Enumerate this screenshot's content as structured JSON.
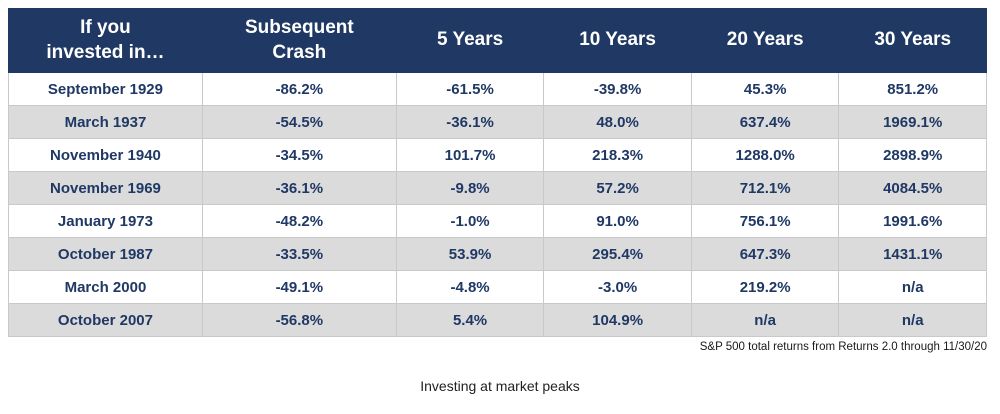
{
  "table": {
    "headers": [
      "If you\ninvested in…",
      "Subsequent\nCrash",
      "5 Years",
      "10 Years",
      "20 Years",
      "30 Years"
    ],
    "rows": [
      [
        "September 1929",
        "-86.2%",
        "-61.5%",
        "-39.8%",
        "45.3%",
        "851.2%"
      ],
      [
        "March 1937",
        "-54.5%",
        "-36.1%",
        "48.0%",
        "637.4%",
        "1969.1%"
      ],
      [
        "November 1940",
        "-34.5%",
        "101.7%",
        "218.3%",
        "1288.0%",
        "2898.9%"
      ],
      [
        "November 1969",
        "-36.1%",
        "-9.8%",
        "57.2%",
        "712.1%",
        "4084.5%"
      ],
      [
        "January 1973",
        "-48.2%",
        "-1.0%",
        "91.0%",
        "756.1%",
        "1991.6%"
      ],
      [
        "October 1987",
        "-33.5%",
        "53.9%",
        "295.4%",
        "647.3%",
        "1431.1%"
      ],
      [
        "March 2000",
        "-49.1%",
        "-4.8%",
        "-3.0%",
        "219.2%",
        "n/a"
      ],
      [
        "October 2007",
        "-56.8%",
        "5.4%",
        "104.9%",
        "n/a",
        "n/a"
      ]
    ]
  },
  "footnote": "S&P 500 total returns from Returns 2.0 through 11/30/20",
  "caption": "Investing at market peaks",
  "colors": {
    "header_bg": "#1F3864",
    "cell_text": "#1F3864",
    "row_alt_bg": "#DBDBDB",
    "border": "#C9C9C9"
  },
  "chart_data": {
    "type": "table",
    "title": "Investing at market peaks",
    "columns": [
      "If you invested in…",
      "Subsequent Crash",
      "5 Years",
      "10 Years",
      "20 Years",
      "30 Years"
    ],
    "rows": [
      [
        "September 1929",
        "-86.2%",
        "-61.5%",
        "-39.8%",
        "45.3%",
        "851.2%"
      ],
      [
        "March 1937",
        "-54.5%",
        "-36.1%",
        "48.0%",
        "637.4%",
        "1969.1%"
      ],
      [
        "November 1940",
        "-34.5%",
        "101.7%",
        "218.3%",
        "1288.0%",
        "2898.9%"
      ],
      [
        "November 1969",
        "-36.1%",
        "-9.8%",
        "57.2%",
        "712.1%",
        "4084.5%"
      ],
      [
        "January 1973",
        "-48.2%",
        "-1.0%",
        "91.0%",
        "756.1%",
        "1991.6%"
      ],
      [
        "October 1987",
        "-33.5%",
        "53.9%",
        "295.4%",
        "647.3%",
        "1431.1%"
      ],
      [
        "March 2000",
        "-49.1%",
        "-4.8%",
        "-3.0%",
        "219.2%",
        "n/a"
      ],
      [
        "October 2007",
        "-56.8%",
        "5.4%",
        "104.9%",
        "n/a",
        "n/a"
      ]
    ],
    "source_note": "S&P 500 total returns from Returns 2.0 through 11/30/20"
  }
}
